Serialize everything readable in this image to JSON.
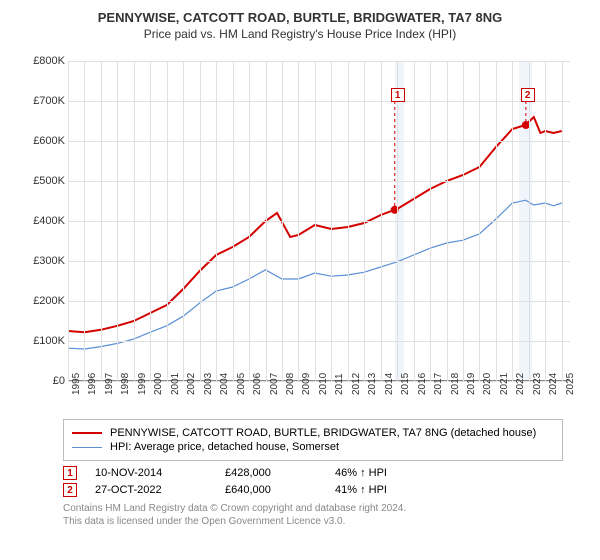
{
  "title": "PENNYWISE, CATCOTT ROAD, BURTLE, BRIDGWATER, TA7 8NG",
  "subtitle": "Price paid vs. HM Land Registry's House Price Index (HPI)",
  "chart": {
    "type": "line",
    "xlim": [
      1995,
      2025.5
    ],
    "ylim": [
      0,
      800000
    ],
    "ytick_step": 100000,
    "yticks_labels": [
      "£0",
      "£100K",
      "£200K",
      "£300K",
      "£400K",
      "£500K",
      "£600K",
      "£700K",
      "£800K"
    ],
    "xticks": [
      1995,
      1996,
      1997,
      1998,
      1999,
      2000,
      2001,
      2002,
      2003,
      2004,
      2005,
      2006,
      2007,
      2008,
      2009,
      2010,
      2011,
      2012,
      2013,
      2014,
      2015,
      2016,
      2017,
      2018,
      2019,
      2020,
      2021,
      2022,
      2023,
      2024,
      2025
    ],
    "background_color": "#ffffff",
    "grid_color": "#e0e0e0",
    "shade_color": "#f0f4fb",
    "shade_ranges": [
      [
        2014.85,
        2015.4
      ],
      [
        2022.4,
        2023.2
      ]
    ],
    "series": [
      {
        "name": "red",
        "label": "PENNYWISE, CATCOTT ROAD, BURTLE, BRIDGWATER, TA7 8NG (detached house)",
        "color": "#d40000",
        "width": 2,
        "points": [
          [
            1995,
            125000
          ],
          [
            1996,
            122000
          ],
          [
            1997,
            128000
          ],
          [
            1998,
            138000
          ],
          [
            1999,
            150000
          ],
          [
            2000,
            170000
          ],
          [
            2001,
            190000
          ],
          [
            2002,
            230000
          ],
          [
            2003,
            275000
          ],
          [
            2004,
            315000
          ],
          [
            2005,
            335000
          ],
          [
            2006,
            360000
          ],
          [
            2007,
            400000
          ],
          [
            2007.7,
            420000
          ],
          [
            2008.5,
            360000
          ],
          [
            2009,
            365000
          ],
          [
            2010,
            390000
          ],
          [
            2011,
            380000
          ],
          [
            2012,
            385000
          ],
          [
            2013,
            395000
          ],
          [
            2014,
            415000
          ],
          [
            2014.85,
            428000
          ],
          [
            2015,
            430000
          ],
          [
            2016,
            455000
          ],
          [
            2017,
            480000
          ],
          [
            2018,
            500000
          ],
          [
            2019,
            515000
          ],
          [
            2020,
            535000
          ],
          [
            2021,
            585000
          ],
          [
            2022,
            630000
          ],
          [
            2022.8,
            640000
          ],
          [
            2023.3,
            660000
          ],
          [
            2023.7,
            620000
          ],
          [
            2024,
            625000
          ],
          [
            2024.5,
            620000
          ],
          [
            2025,
            625000
          ]
        ]
      },
      {
        "name": "blue",
        "label": "HPI: Average price, detached house, Somerset",
        "color": "#5b8fd6",
        "width": 1.2,
        "points": [
          [
            1995,
            82000
          ],
          [
            1996,
            80000
          ],
          [
            1997,
            86000
          ],
          [
            1998,
            94000
          ],
          [
            1999,
            105000
          ],
          [
            2000,
            122000
          ],
          [
            2001,
            138000
          ],
          [
            2002,
            162000
          ],
          [
            2003,
            195000
          ],
          [
            2004,
            225000
          ],
          [
            2005,
            235000
          ],
          [
            2006,
            255000
          ],
          [
            2007,
            278000
          ],
          [
            2008,
            255000
          ],
          [
            2009,
            255000
          ],
          [
            2010,
            270000
          ],
          [
            2011,
            262000
          ],
          [
            2012,
            265000
          ],
          [
            2013,
            272000
          ],
          [
            2014,
            285000
          ],
          [
            2015,
            298000
          ],
          [
            2016,
            315000
          ],
          [
            2017,
            332000
          ],
          [
            2018,
            345000
          ],
          [
            2019,
            352000
          ],
          [
            2020,
            368000
          ],
          [
            2021,
            405000
          ],
          [
            2022,
            445000
          ],
          [
            2022.8,
            452000
          ],
          [
            2023.3,
            440000
          ],
          [
            2024,
            445000
          ],
          [
            2024.5,
            438000
          ],
          [
            2025,
            445000
          ]
        ]
      }
    ],
    "markers": [
      {
        "n": "1",
        "x": 2014.85,
        "y": 428000,
        "box_x": 2014.6,
        "box_y": 715000
      },
      {
        "n": "2",
        "x": 2022.82,
        "y": 640000,
        "box_x": 2022.5,
        "box_y": 715000
      }
    ],
    "marker_dot_color": "#d40000"
  },
  "legend": {
    "items": [
      {
        "color": "#d40000",
        "width": 2,
        "text": "PENNYWISE, CATCOTT ROAD, BURTLE, BRIDGWATER, TA7 8NG (detached house)"
      },
      {
        "color": "#5b8fd6",
        "width": 1.2,
        "text": "HPI: Average price, detached house, Somerset"
      }
    ]
  },
  "data_rows": [
    {
      "n": "1",
      "date": "10-NOV-2014",
      "price": "£428,000",
      "pct": "46% ↑ HPI"
    },
    {
      "n": "2",
      "date": "27-OCT-2022",
      "price": "£640,000",
      "pct": "41% ↑ HPI"
    }
  ],
  "footer_line1": "Contains HM Land Registry data © Crown copyright and database right 2024.",
  "footer_line2": "This data is licensed under the Open Government Licence v3.0."
}
